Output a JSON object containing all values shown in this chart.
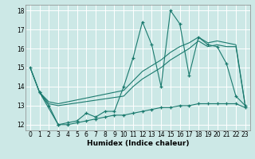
{
  "xlabel": "Humidex (Indice chaleur)",
  "bg_color": "#cce8e6",
  "grid_color": "#ffffff",
  "line_color": "#1a7a6e",
  "xlim": [
    -0.5,
    23.5
  ],
  "ylim": [
    11.7,
    18.3
  ],
  "yticks": [
    12,
    13,
    14,
    15,
    16,
    17,
    18
  ],
  "xticks": [
    0,
    1,
    2,
    3,
    4,
    5,
    6,
    7,
    8,
    9,
    10,
    11,
    12,
    13,
    14,
    15,
    16,
    17,
    18,
    19,
    20,
    21,
    22,
    23
  ],
  "series1_x": [
    0,
    1,
    2,
    3,
    4,
    5,
    6,
    7,
    8,
    9,
    10,
    11,
    12,
    13,
    14,
    15,
    16,
    17,
    18,
    19,
    20,
    21,
    22,
    23
  ],
  "series1_y": [
    15.0,
    13.7,
    13.0,
    12.0,
    12.1,
    12.2,
    12.6,
    12.4,
    12.7,
    12.7,
    14.0,
    15.5,
    17.4,
    16.2,
    14.0,
    18.0,
    17.3,
    14.6,
    16.6,
    16.2,
    16.1,
    15.2,
    13.5,
    13.0
  ],
  "series2_x": [
    0,
    1,
    2,
    3,
    10,
    11,
    12,
    13,
    14,
    15,
    16,
    17,
    18,
    19,
    20,
    21,
    22,
    23
  ],
  "series2_y": [
    15.0,
    13.7,
    13.1,
    13.0,
    13.5,
    14.0,
    14.4,
    14.7,
    15.0,
    15.4,
    15.7,
    16.0,
    16.4,
    16.1,
    16.2,
    16.1,
    16.1,
    13.0
  ],
  "series3_x": [
    0,
    1,
    2,
    3,
    10,
    11,
    12,
    13,
    14,
    15,
    16,
    17,
    18,
    19,
    20,
    21,
    22,
    23
  ],
  "series3_y": [
    15.0,
    13.7,
    13.2,
    13.1,
    13.8,
    14.3,
    14.8,
    15.1,
    15.4,
    15.8,
    16.1,
    16.3,
    16.6,
    16.3,
    16.4,
    16.3,
    16.2,
    13.0
  ],
  "series4_x": [
    1,
    3,
    4,
    5,
    6,
    7,
    8,
    9,
    10,
    11,
    12,
    13,
    14,
    15,
    16,
    17,
    18,
    19,
    20,
    21,
    22,
    23
  ],
  "series4_y": [
    13.7,
    12.0,
    12.0,
    12.1,
    12.2,
    12.3,
    12.4,
    12.5,
    12.5,
    12.6,
    12.7,
    12.8,
    12.9,
    12.9,
    13.0,
    13.0,
    13.1,
    13.1,
    13.1,
    13.1,
    13.1,
    12.9
  ]
}
